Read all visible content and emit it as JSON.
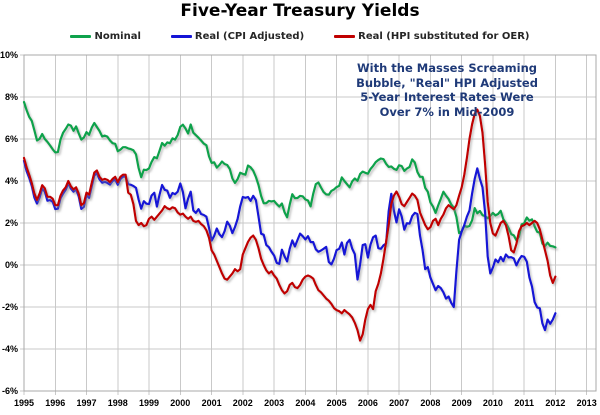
{
  "page": {
    "title": "Five-Year Treasury Yields"
  },
  "annotation": {
    "lines": [
      "With the Masses Screaming",
      "Bubble, \"Real\" HPI Adjusted",
      "5-Year Interest Rates Were",
      "Over 7% in Mid-2009"
    ],
    "color": "#1f3a78"
  },
  "chart_data": {
    "type": "line",
    "title": "Five-Year Treasury Yields",
    "xlabel": "",
    "ylabel": "",
    "ylim": [
      -6,
      10
    ],
    "x_range_years": [
      1995,
      2013
    ],
    "grid": true,
    "legend_position": "top",
    "points_start": "1995-01",
    "points_interval": "monthly",
    "y_ticks": [
      {
        "label": "10%",
        "value": 10
      },
      {
        "label": "8%",
        "value": 8
      },
      {
        "label": "6%",
        "value": 6
      },
      {
        "label": "4%",
        "value": 4
      },
      {
        "label": "2%",
        "value": 2
      },
      {
        "label": "0%",
        "value": 0
      },
      {
        "label": "-2%",
        "value": -2
      },
      {
        "label": "-4%",
        "value": -4
      },
      {
        "label": "-6%",
        "value": -6
      }
    ],
    "x_ticks": [
      {
        "label": "1995",
        "value": 1995
      },
      {
        "label": "1996",
        "value": 1996
      },
      {
        "label": "1997",
        "value": 1997
      },
      {
        "label": "1998",
        "value": 1998
      },
      {
        "label": "1999",
        "value": 1999
      },
      {
        "label": "2000",
        "value": 2000
      },
      {
        "label": "2001",
        "value": 2001
      },
      {
        "label": "2002",
        "value": 2002
      },
      {
        "label": "2003",
        "value": 2003
      },
      {
        "label": "2004",
        "value": 2004
      },
      {
        "label": "2005",
        "value": 2005
      },
      {
        "label": "2006",
        "value": 2006
      },
      {
        "label": "2007",
        "value": 2007
      },
      {
        "label": "2008",
        "value": 2008
      },
      {
        "label": "2009",
        "value": 2009
      },
      {
        "label": "2010",
        "value": 2010
      },
      {
        "label": "2011",
        "value": 2011
      },
      {
        "label": "2012",
        "value": 2012
      },
      {
        "label": "2013",
        "value": 2013
      }
    ],
    "series": [
      {
        "id": "nominal",
        "name": "Nominal",
        "color": "#0fa24c",
        "values": [
          7.76,
          7.37,
          7.05,
          6.86,
          6.41,
          5.93,
          6.01,
          6.24,
          6.0,
          5.86,
          5.69,
          5.51,
          5.36,
          5.38,
          5.97,
          6.3,
          6.48,
          6.69,
          6.64,
          6.39,
          6.6,
          6.27,
          5.97,
          6.07,
          6.33,
          6.2,
          6.54,
          6.76,
          6.57,
          6.38,
          6.12,
          6.16,
          6.11,
          5.93,
          5.8,
          5.77,
          5.42,
          5.49,
          5.61,
          5.61,
          5.55,
          5.52,
          5.46,
          5.27,
          4.62,
          4.18,
          4.54,
          4.52,
          4.6,
          4.91,
          5.14,
          5.08,
          5.44,
          5.81,
          5.68,
          5.84,
          5.8,
          6.03,
          5.97,
          6.19,
          6.58,
          6.68,
          6.5,
          6.26,
          6.69,
          6.3,
          6.18,
          6.06,
          5.93,
          5.78,
          5.7,
          5.17,
          4.86,
          4.89,
          4.64,
          4.76,
          4.93,
          4.81,
          4.76,
          4.57,
          4.12,
          3.91,
          4.09,
          4.39,
          4.34,
          4.3,
          4.74,
          4.65,
          4.49,
          4.19,
          3.81,
          3.29,
          2.94,
          2.95,
          3.05,
          3.03,
          3.05,
          2.9,
          2.78,
          2.93,
          2.52,
          2.27,
          2.87,
          3.37,
          3.18,
          3.19,
          3.29,
          3.27,
          3.12,
          3.07,
          2.79,
          3.39,
          3.85,
          3.93,
          3.69,
          3.47,
          3.36,
          3.35,
          3.53,
          3.6,
          3.71,
          3.77,
          4.17,
          4.0,
          3.85,
          3.7,
          3.98,
          4.12,
          4.01,
          4.33,
          4.45,
          4.39,
          4.35,
          4.57,
          4.72,
          4.9,
          5.0,
          5.07,
          5.04,
          4.82,
          4.67,
          4.69,
          4.58,
          4.53,
          4.75,
          4.71,
          4.48,
          4.59,
          4.67,
          5.03,
          4.88,
          4.43,
          4.2,
          4.2,
          3.67,
          3.49,
          2.98,
          2.78,
          2.48,
          2.84,
          3.15,
          3.49,
          3.3,
          3.14,
          2.88,
          2.73,
          2.29,
          1.52,
          1.6,
          1.87,
          1.82,
          1.86,
          2.13,
          2.71,
          2.46,
          2.57,
          2.37,
          2.33,
          2.23,
          2.34,
          2.48,
          2.36,
          2.43,
          2.58,
          2.18,
          2.0,
          1.76,
          1.47,
          1.41,
          1.18,
          1.35,
          1.93,
          1.99,
          2.26,
          2.11,
          2.17,
          1.84,
          1.58,
          1.54,
          1.02,
          0.9,
          1.06,
          0.91,
          0.89,
          0.84
        ]
      },
      {
        "id": "real-cpi",
        "name": "Real (CPI Adjusted)",
        "color": "#1414d6",
        "values": [
          4.96,
          4.47,
          4.15,
          3.76,
          3.21,
          2.93,
          3.21,
          3.64,
          3.5,
          3.06,
          3.09,
          3.01,
          2.66,
          2.68,
          3.17,
          3.4,
          3.58,
          3.89,
          3.64,
          3.49,
          3.6,
          3.27,
          2.67,
          2.77,
          3.33,
          3.2,
          3.74,
          4.26,
          4.37,
          4.08,
          3.92,
          3.96,
          3.91,
          3.83,
          4.0,
          4.07,
          3.82,
          4.09,
          4.21,
          4.21,
          3.85,
          3.82,
          3.76,
          3.67,
          3.12,
          2.68,
          3.04,
          2.92,
          2.9,
          3.31,
          3.44,
          2.78,
          3.34,
          3.81,
          3.58,
          3.54,
          3.2,
          3.43,
          3.37,
          3.49,
          3.88,
          3.48,
          2.7,
          3.16,
          3.49,
          2.6,
          2.48,
          2.66,
          2.43,
          2.38,
          2.3,
          1.77,
          1.16,
          1.39,
          1.74,
          1.46,
          1.33,
          1.61,
          2.06,
          1.87,
          1.52,
          1.81,
          2.19,
          2.79,
          3.24,
          3.2,
          3.24,
          3.05,
          3.29,
          3.09,
          2.31,
          1.49,
          1.44,
          0.95,
          0.85,
          0.63,
          0.45,
          0.1,
          0.05,
          0.73,
          0.42,
          0.17,
          0.77,
          1.17,
          0.88,
          1.19,
          1.49,
          1.37,
          1.22,
          1.37,
          1.09,
          1.09,
          0.75,
          0.63,
          0.69,
          0.77,
          0.86,
          0.15,
          0.03,
          0.3,
          0.71,
          0.77,
          1.07,
          0.5,
          1.05,
          1.2,
          0.78,
          0.52,
          -0.69,
          0.03,
          0.95,
          0.99,
          0.35,
          0.97,
          1.32,
          1.4,
          0.8,
          0.77,
          0.94,
          1.02,
          2.57,
          3.39,
          2.58,
          2.03,
          2.65,
          2.31,
          1.68,
          1.99,
          1.97,
          2.33,
          2.48,
          2.43,
          1.4,
          0.7,
          -0.2,
          -0.1,
          -0.6,
          -0.9,
          -1.2,
          -1.0,
          -1.1,
          -1.3,
          -1.6,
          -1.5,
          -1.8,
          -2.0,
          -0.3,
          1.2,
          1.6,
          1.9,
          2.3,
          2.6,
          3.4,
          4.1,
          4.6,
          4.1,
          3.7,
          2.5,
          0.4,
          -0.4,
          -0.12,
          0.26,
          0.13,
          0.38,
          0.18,
          0.5,
          0.36,
          0.37,
          0.31,
          -0.02,
          0.25,
          0.43,
          0.39,
          0.16,
          -0.59,
          -1.03,
          -1.76,
          -2.02,
          -2.06,
          -2.78,
          -3.1,
          -2.6,
          -2.8,
          -2.6,
          -2.3
        ]
      },
      {
        "id": "real-hpi",
        "name": "Real (HPI substituted for OER)",
        "color": "#c00000",
        "values": [
          5.1,
          4.65,
          4.3,
          3.9,
          3.4,
          3.1,
          3.4,
          3.8,
          3.65,
          3.25,
          3.25,
          3.15,
          2.85,
          2.85,
          3.3,
          3.55,
          3.7,
          4.0,
          3.75,
          3.6,
          3.7,
          3.4,
          2.85,
          2.95,
          3.45,
          3.35,
          3.9,
          4.4,
          4.5,
          4.2,
          4.05,
          4.1,
          4.05,
          3.95,
          4.1,
          4.2,
          3.95,
          4.2,
          4.3,
          4.3,
          3.45,
          3.35,
          2.9,
          2.1,
          1.9,
          2.0,
          1.85,
          1.9,
          2.2,
          2.3,
          2.15,
          2.3,
          2.45,
          2.6,
          2.8,
          2.7,
          2.65,
          2.75,
          2.7,
          2.5,
          2.4,
          2.45,
          2.3,
          2.2,
          2.3,
          2.1,
          2.05,
          2.1,
          1.95,
          1.85,
          1.65,
          1.3,
          0.7,
          0.5,
          0.2,
          -0.1,
          -0.4,
          -0.65,
          -0.7,
          -0.55,
          -0.4,
          -0.2,
          -0.3,
          -0.2,
          0.5,
          0.8,
          1.1,
          1.3,
          1.4,
          1.2,
          0.8,
          0.3,
          0.0,
          -0.25,
          -0.4,
          -0.3,
          -0.5,
          -0.65,
          -0.95,
          -1.2,
          -1.35,
          -1.25,
          -0.95,
          -0.85,
          -1.05,
          -1.1,
          -0.95,
          -0.7,
          -0.55,
          -0.5,
          -0.55,
          -0.65,
          -0.95,
          -1.2,
          -1.3,
          -1.45,
          -1.6,
          -1.7,
          -1.85,
          -2.05,
          -2.15,
          -2.2,
          -2.3,
          -2.15,
          -2.25,
          -2.35,
          -2.5,
          -2.75,
          -3.1,
          -3.6,
          -3.3,
          -2.6,
          -2.1,
          -1.9,
          -2.1,
          -1.25,
          -0.9,
          -0.4,
          0.3,
          1.1,
          1.9,
          2.9,
          3.3,
          3.5,
          3.25,
          2.9,
          2.8,
          3.0,
          3.2,
          3.4,
          3.3,
          3.1,
          2.5,
          2.2,
          1.9,
          1.7,
          1.8,
          2.1,
          2.2,
          1.9,
          2.2,
          2.4,
          2.7,
          2.85,
          2.75,
          2.65,
          2.85,
          3.3,
          3.7,
          4.3,
          5.1,
          6.0,
          6.7,
          7.2,
          7.4,
          7.1,
          6.3,
          4.8,
          3.0,
          2.0,
          1.5,
          1.4,
          1.7,
          2.0,
          2.1,
          1.9,
          1.4,
          0.7,
          0.6,
          1.0,
          1.6,
          1.85,
          1.9,
          2.0,
          1.9,
          2.0,
          2.1,
          2.0,
          1.7,
          1.2,
          0.7,
          0.2,
          -0.5,
          -0.85,
          -0.55
        ]
      }
    ]
  }
}
